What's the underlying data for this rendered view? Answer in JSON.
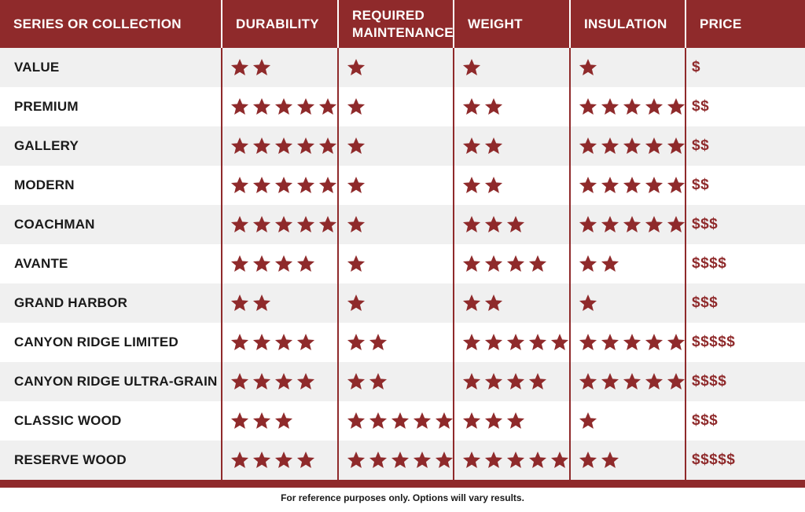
{
  "colors": {
    "accent": "#8f2a2b",
    "row_alt": "#f0f0f0",
    "row_base": "#ffffff"
  },
  "headers": [
    "SERIES OR COLLECTION",
    "DURABILITY",
    "REQUIRED MAINTENANCE",
    "WEIGHT",
    "INSULATION",
    "PRICE"
  ],
  "rows": [
    {
      "name": "VALUE",
      "durability": 2,
      "maintenance": 1,
      "weight": 1,
      "insulation": 1,
      "price": "$"
    },
    {
      "name": "PREMIUM",
      "durability": 5,
      "maintenance": 1,
      "weight": 2,
      "insulation": 5,
      "price": "$$"
    },
    {
      "name": "GALLERY",
      "durability": 5,
      "maintenance": 1,
      "weight": 2,
      "insulation": 5,
      "price": "$$"
    },
    {
      "name": "MODERN",
      "durability": 5,
      "maintenance": 1,
      "weight": 2,
      "insulation": 5,
      "price": "$$"
    },
    {
      "name": "COACHMAN",
      "durability": 5,
      "maintenance": 1,
      "weight": 3,
      "insulation": 5,
      "price": "$$$"
    },
    {
      "name": "AVANTE",
      "durability": 4,
      "maintenance": 1,
      "weight": 4,
      "insulation": 2,
      "price": "$$$$"
    },
    {
      "name": "GRAND HARBOR",
      "durability": 2,
      "maintenance": 1,
      "weight": 2,
      "insulation": 1,
      "price": "$$$"
    },
    {
      "name": "CANYON RIDGE LIMITED",
      "durability": 4,
      "maintenance": 2,
      "weight": 5,
      "insulation": 5,
      "price": "$$$$$"
    },
    {
      "name": "CANYON RIDGE ULTRA-GRAIN",
      "durability": 4,
      "maintenance": 2,
      "weight": 4,
      "insulation": 5,
      "price": "$$$$"
    },
    {
      "name": "CLASSIC WOOD",
      "durability": 3,
      "maintenance": 5,
      "weight": 3,
      "insulation": 1,
      "price": "$$$"
    },
    {
      "name": "RESERVE WOOD",
      "durability": 4,
      "maintenance": 5,
      "weight": 5,
      "insulation": 2,
      "price": "$$$$$"
    }
  ],
  "icon": "star-icon",
  "footnote": "For reference purposes only. Options will vary results."
}
